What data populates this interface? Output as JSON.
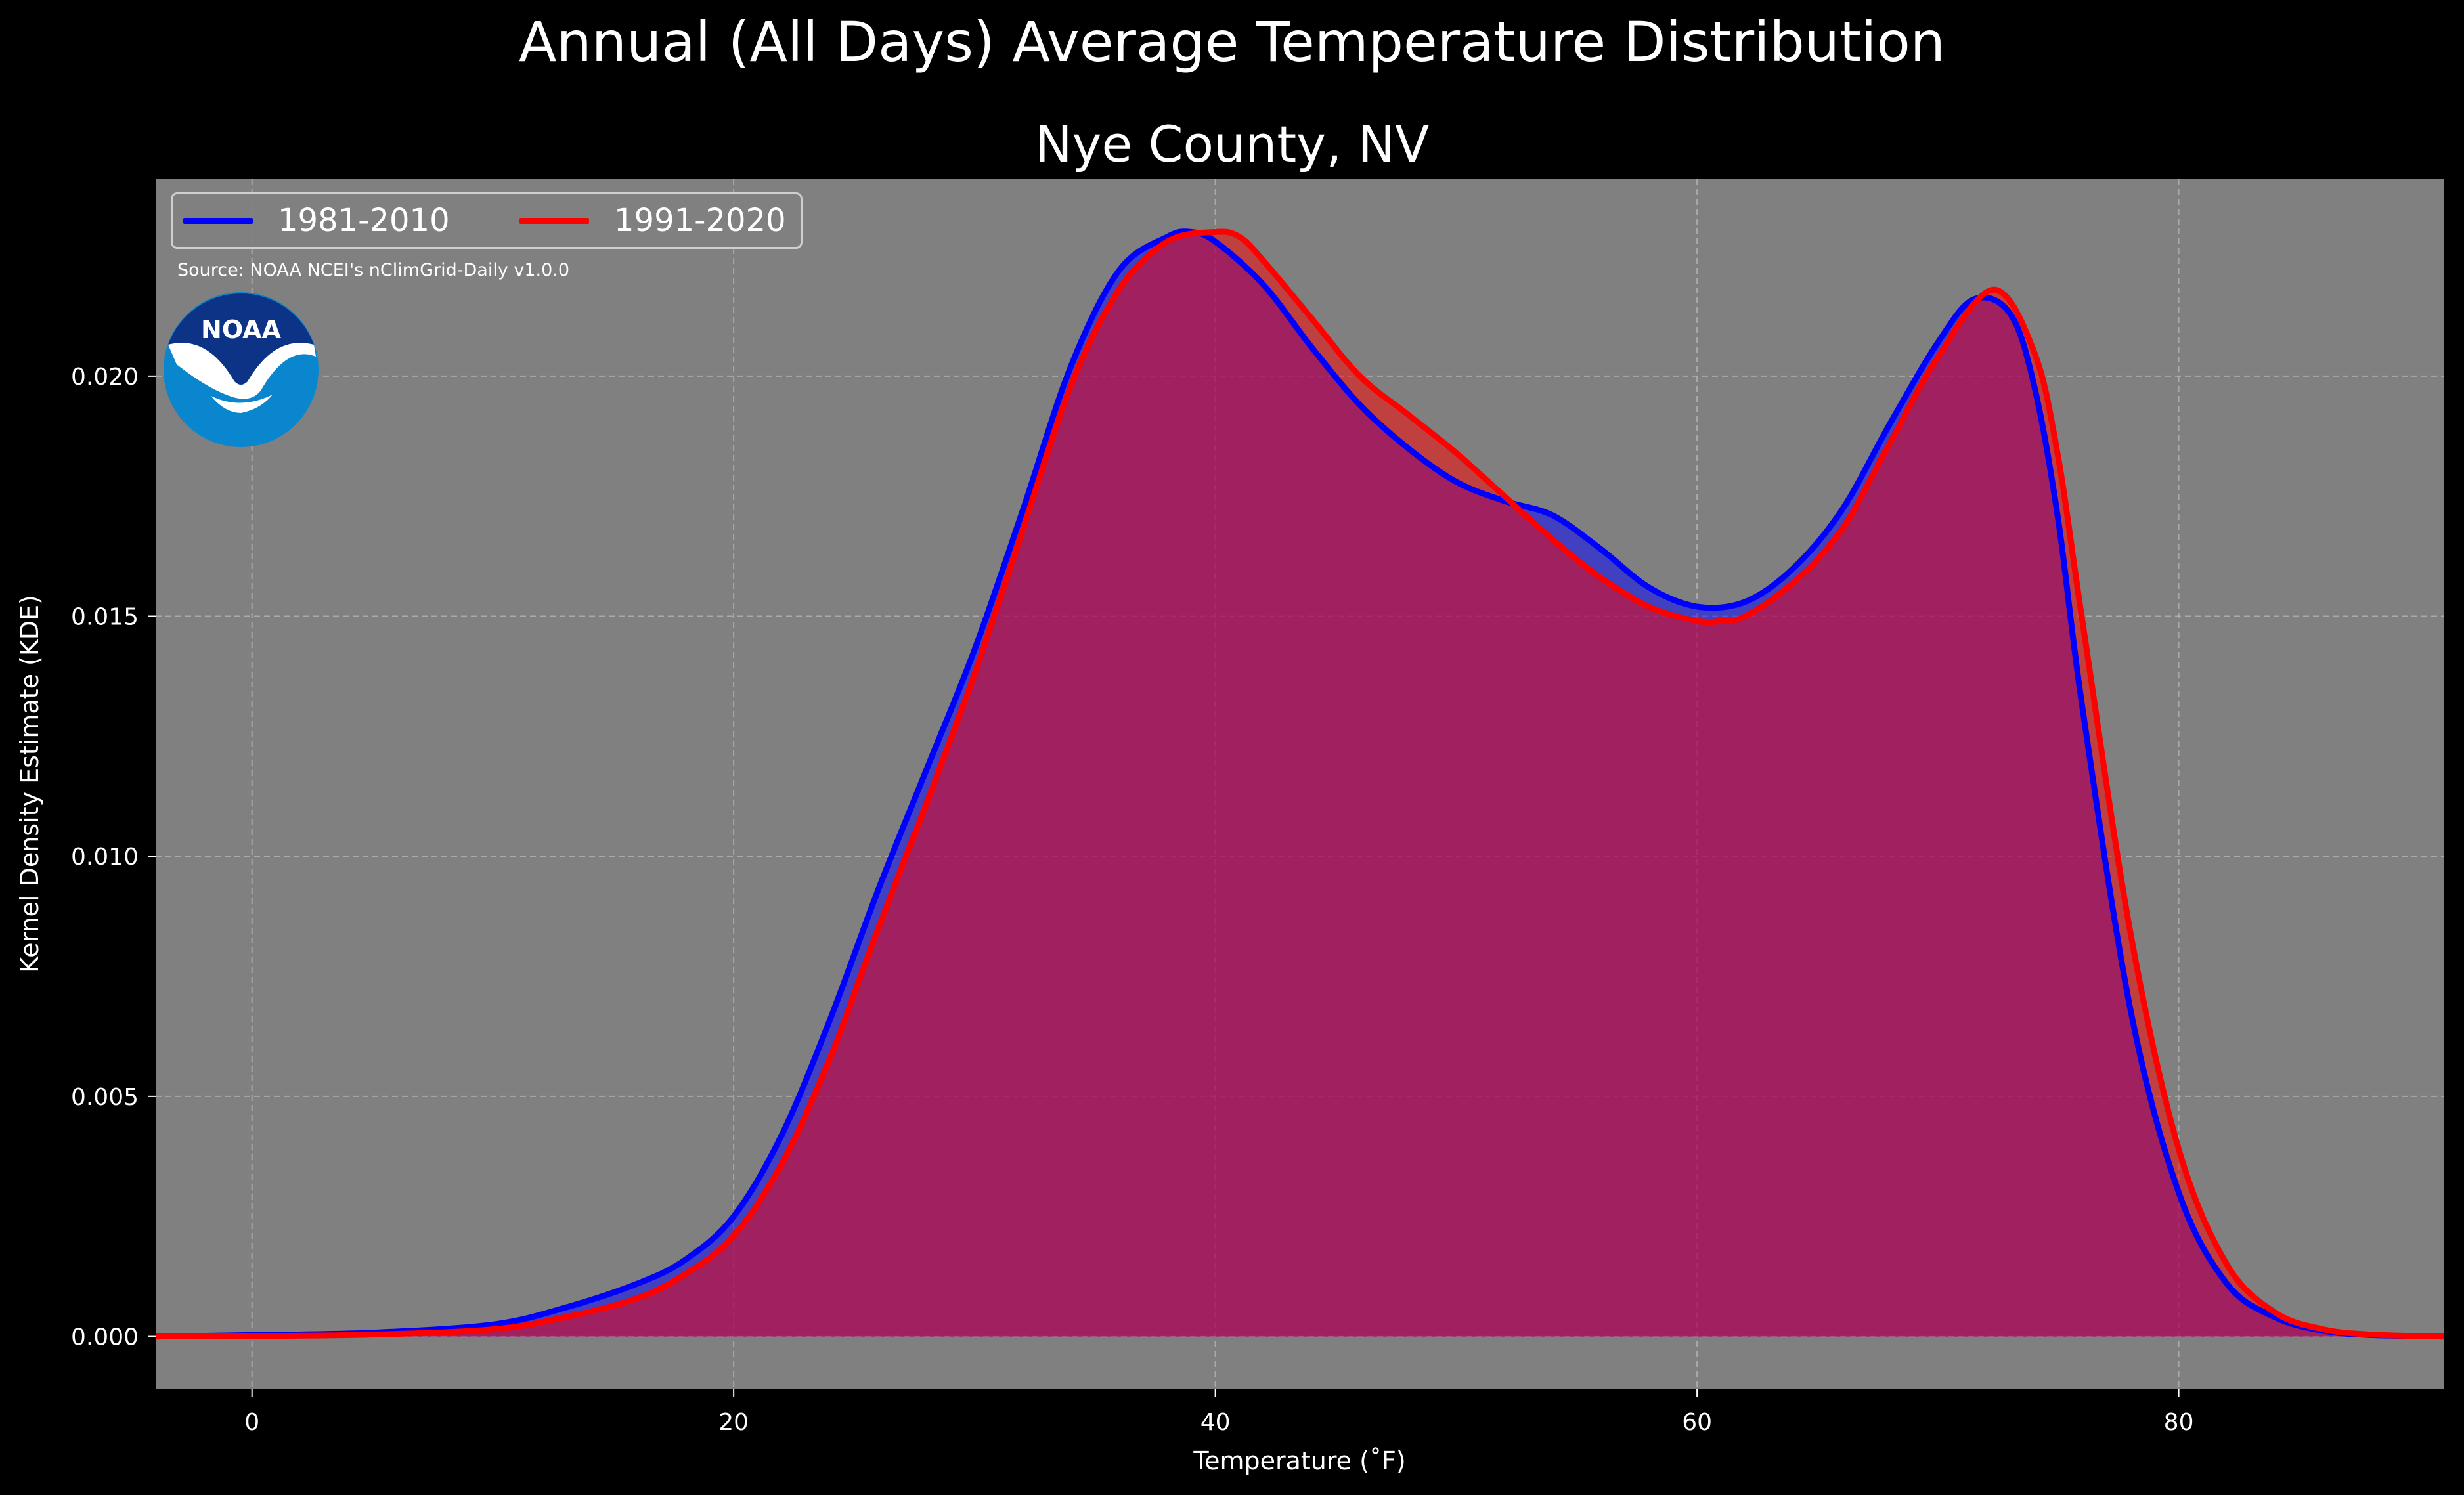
{
  "suptitle": "Annual (All Days) Average Temperature Distribution",
  "subtitle": "Nye County, NV",
  "source": "Source: NOAA NCEI's nClimGrid-Daily v1.0.0",
  "logo_text": "NOAA",
  "legend": {
    "placement": "upper-left",
    "ncol": 2
  },
  "colors": {
    "background": "#000000",
    "plot_bg": "#808080",
    "fill_overlap": "#9e1e5c",
    "grid": "#b4b4b4"
  },
  "chart_data": {
    "type": "area",
    "xlabel": "Temperature ($^\\circ$F)",
    "xlabel_display": "Temperature (˚F)",
    "ylabel": "Kernel Density Estimate (KDE)",
    "xlim": [
      -4,
      91
    ],
    "ylim": [
      -0.0011,
      0.0241
    ],
    "xticks": [
      0,
      20,
      40,
      60,
      80
    ],
    "xtick_labels": [
      "0",
      "20",
      "40",
      "60",
      "80"
    ],
    "yticks": [
      0,
      0.005,
      0.01,
      0.015,
      0.02
    ],
    "ytick_labels": [
      "0.000",
      "0.005",
      "0.010",
      "0.015",
      "0.020"
    ],
    "grid": true,
    "series": [
      {
        "name": "1981-2010",
        "color": "#0000ff",
        "x": [
          -4,
          0,
          5,
          10,
          13,
          16,
          18,
          20,
          22,
          24,
          26,
          28,
          30,
          32,
          34,
          36,
          38,
          39,
          40,
          42,
          44,
          46,
          48,
          50,
          52,
          54,
          56,
          58,
          60,
          62,
          64,
          66,
          68,
          70,
          71.5,
          73,
          74,
          75,
          76,
          78,
          80,
          82,
          84,
          86,
          88,
          91
        ],
        "y": [
          0.0,
          3e-05,
          8e-05,
          0.00025,
          0.0006,
          0.0011,
          0.0016,
          0.0025,
          0.0042,
          0.0066,
          0.0093,
          0.0118,
          0.0143,
          0.0172,
          0.0202,
          0.0222,
          0.0229,
          0.023,
          0.0228,
          0.0219,
          0.0206,
          0.0194,
          0.0185,
          0.0178,
          0.0174,
          0.0171,
          0.0164,
          0.0156,
          0.0152,
          0.0153,
          0.016,
          0.0172,
          0.019,
          0.0207,
          0.0216,
          0.0213,
          0.0198,
          0.017,
          0.0131,
          0.0068,
          0.003,
          0.0011,
          0.0004,
          0.00012,
          3e-05,
          0.0
        ]
      },
      {
        "name": "1991-2020",
        "color": "#ff0000",
        "x": [
          -4,
          0,
          5,
          10,
          13,
          16,
          18,
          20,
          22,
          24,
          26,
          28,
          30,
          32,
          34,
          36,
          38,
          40,
          41,
          42,
          44,
          46,
          48,
          50,
          52,
          54,
          56,
          58,
          60,
          61,
          62,
          64,
          66,
          68,
          70,
          72.3,
          74,
          75,
          76,
          78,
          80,
          82,
          84,
          86,
          88,
          91
        ],
        "y": [
          0.0,
          1e-05,
          4e-05,
          0.00015,
          0.0004,
          0.0008,
          0.0013,
          0.0021,
          0.0036,
          0.0058,
          0.0085,
          0.0111,
          0.0138,
          0.0168,
          0.0198,
          0.0218,
          0.0228,
          0.023,
          0.0229,
          0.0224,
          0.0212,
          0.02,
          0.0192,
          0.0184,
          0.0175,
          0.0166,
          0.0158,
          0.0152,
          0.0149,
          0.0149,
          0.015,
          0.0157,
          0.0168,
          0.0186,
          0.0204,
          0.0218,
          0.0205,
          0.0183,
          0.0149,
          0.0084,
          0.0039,
          0.0015,
          0.0005,
          0.00015,
          4e-05,
          0.0
        ]
      }
    ]
  }
}
